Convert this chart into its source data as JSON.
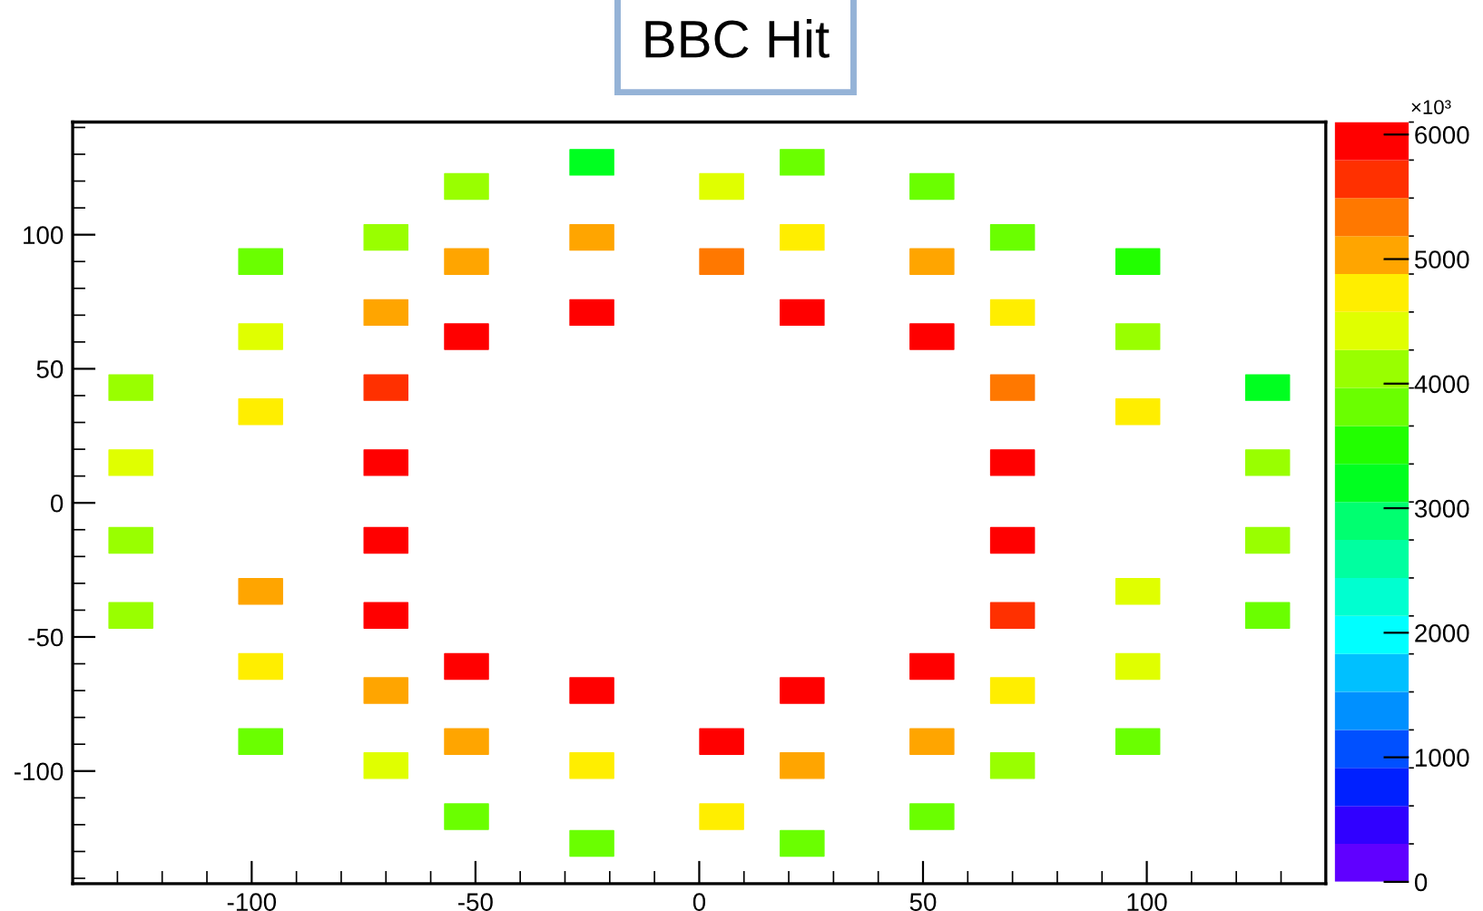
{
  "chart_data": {
    "type": "scatter",
    "title": "BBC Hit",
    "marker": "square",
    "x": [
      -127,
      -127,
      -98,
      -98,
      -98,
      -70,
      -70,
      -70,
      -70,
      -52,
      -52,
      -52,
      -24,
      -24,
      -24,
      5,
      5,
      23,
      23,
      23,
      52,
      52,
      52,
      70,
      70,
      70,
      70,
      98,
      98,
      98,
      127,
      127,
      -127,
      -127,
      -98,
      -98,
      -98,
      -70,
      -70,
      -70,
      -70,
      -52,
      -52,
      -52,
      -24,
      -24,
      -24,
      5,
      5,
      23,
      23,
      23,
      52,
      52,
      52,
      70,
      70,
      70,
      70,
      98,
      98,
      98,
      127,
      127
    ],
    "values": [
      43,
      15,
      90,
      62,
      34,
      99,
      71,
      43,
      15,
      118,
      90,
      62,
      127,
      99,
      71,
      118,
      90,
      127,
      99,
      71,
      118,
      90,
      62,
      99,
      71,
      43,
      15,
      90,
      62,
      34,
      43,
      15,
      -14,
      -42,
      -33,
      -61,
      -89,
      -14,
      -42,
      -70,
      -98,
      -61,
      -89,
      -117,
      -70,
      -98,
      -127,
      -89,
      -117,
      -70,
      -98,
      -127,
      -61,
      -89,
      -117,
      -14,
      -42,
      -70,
      -98,
      -33,
      -61,
      -89,
      -14,
      -42
    ],
    "cvalues": [
      4100,
      4400,
      3800,
      4400,
      4700,
      4100,
      5000,
      5700,
      6000,
      4100,
      5000,
      6000,
      3200,
      5000,
      6000,
      4400,
      5300,
      3800,
      4700,
      6000,
      3800,
      5000,
      6000,
      3800,
      4700,
      5300,
      6000,
      3500,
      4100,
      4700,
      3200,
      4100,
      4100,
      4100,
      5000,
      4700,
      3800,
      6000,
      6000,
      5000,
      4400,
      6000,
      5000,
      3800,
      6000,
      4700,
      3800,
      6000,
      4700,
      6000,
      5000,
      3800,
      6000,
      5000,
      3800,
      6000,
      5700,
      4700,
      4100,
      4400,
      4400,
      3800,
      4100,
      3800
    ],
    "xlim": [
      -140,
      140
    ],
    "ylim": [
      -142,
      142
    ],
    "xticks": [
      -100,
      -50,
      0,
      50,
      100
    ],
    "yticks": [
      -100,
      -50,
      0,
      50,
      100
    ],
    "clim": [
      0,
      6100
    ],
    "cticks": [
      0,
      1000,
      2000,
      3000,
      4000,
      5000,
      6000
    ],
    "clabel": "×10³",
    "grid": false
  }
}
